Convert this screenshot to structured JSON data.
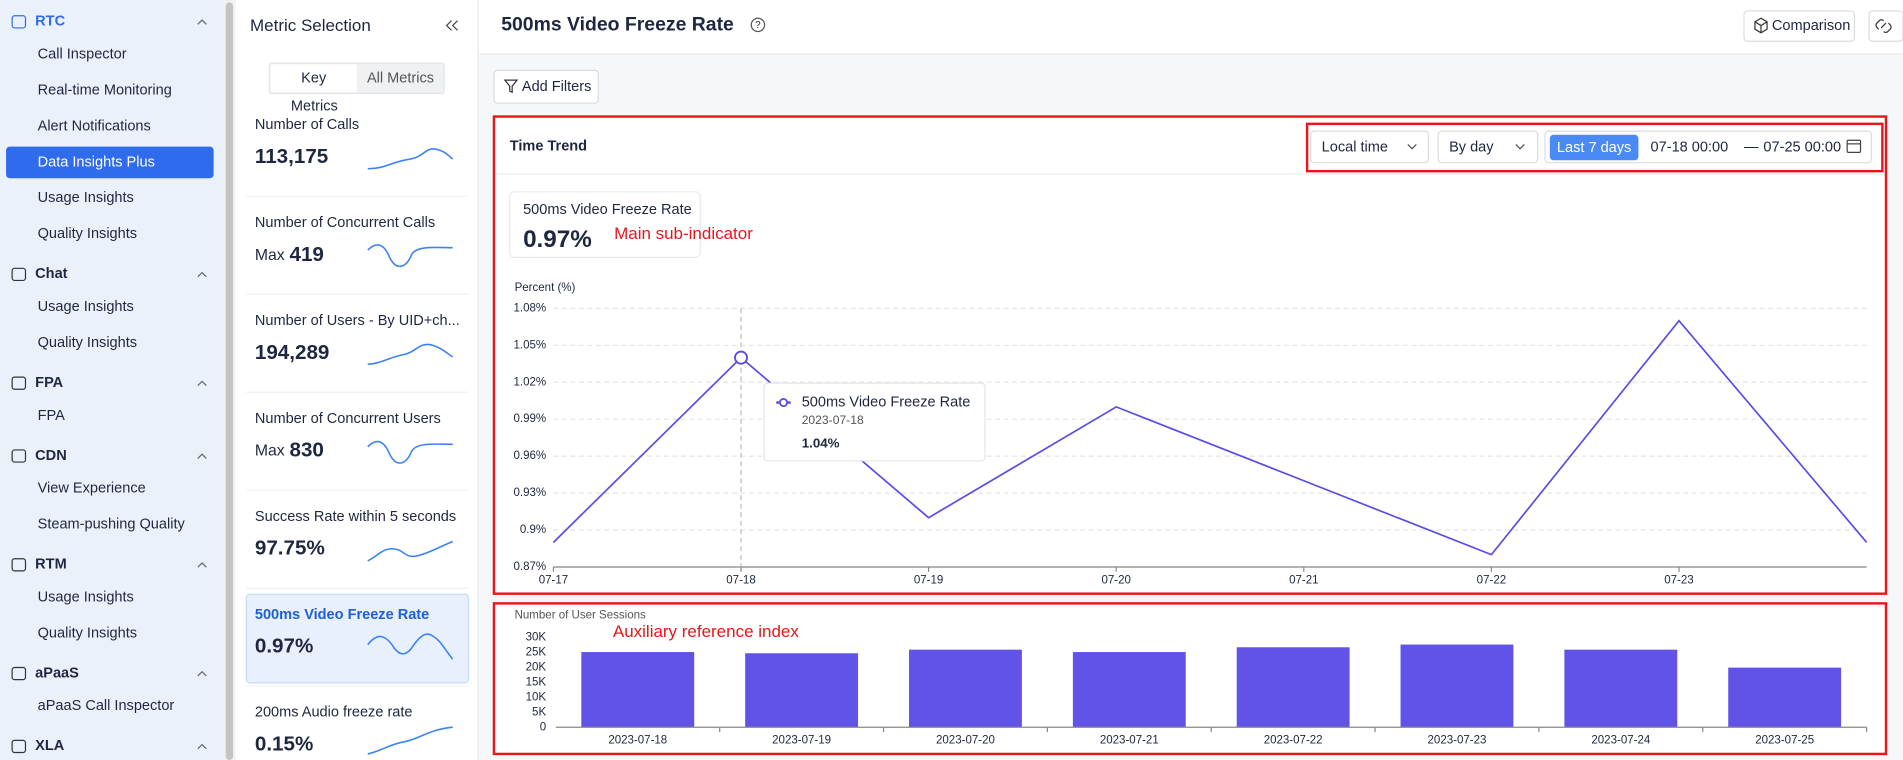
{
  "sidebar": {
    "groups": [
      {
        "title": "RTC",
        "items": [
          "Call Inspector",
          "Real-time Monitoring",
          "Alert Notifications",
          "Data Insights Plus",
          "Usage Insights",
          "Quality Insights"
        ]
      },
      {
        "title": "Chat",
        "items": [
          "Usage Insights",
          "Quality Insights"
        ]
      },
      {
        "title": "FPA",
        "items": [
          "FPA"
        ]
      },
      {
        "title": "CDN",
        "items": [
          "View Experience",
          "Steam-pushing Quality"
        ]
      },
      {
        "title": "RTM",
        "items": [
          "Usage Insights",
          "Quality Insights"
        ]
      },
      {
        "title": "aPaaS",
        "items": [
          "aPaaS Call Inspector"
        ]
      },
      {
        "title": "XLA",
        "items": []
      }
    ]
  },
  "metric_panel": {
    "title": "Metric Selection",
    "tabs": [
      "Key",
      "All Metrics"
    ],
    "section": "Metrics",
    "metrics": [
      {
        "name": "Number of Calls",
        "value": "113,175"
      },
      {
        "name": "Number of Concurrent Calls",
        "prefix": "Max",
        "value": "419"
      },
      {
        "name": "Number of Users - By UID+ch...",
        "value": "194,289"
      },
      {
        "name": "Number of Concurrent Users",
        "prefix": "Max",
        "value": "830"
      },
      {
        "name": "Success Rate within 5 seconds",
        "value": "97.75%"
      },
      {
        "name": "500ms Video Freeze Rate",
        "value": "0.97%"
      },
      {
        "name": "200ms Audio freeze rate",
        "value": "0.15%"
      }
    ]
  },
  "header": {
    "title": "500ms Video Freeze Rate",
    "comparison": "Comparison",
    "add_filters": "Add Filters"
  },
  "time_trend": {
    "title": "Time Trend",
    "timezone": "Local time",
    "granularity": "By day",
    "range": "Last 7 days",
    "start": "07-18 00:00",
    "separator": "—",
    "end": "07-25 00:00",
    "sub_indicator": {
      "name": "500ms Video Freeze Rate",
      "value": "0.97%"
    }
  },
  "chart_data": [
    {
      "type": "line",
      "y_title": "Percent (%)",
      "annotation": "Main sub-indicator",
      "categories": [
        "07-17",
        "07-18",
        "07-19",
        "07-20",
        "07-21",
        "07-22",
        "07-23",
        null
      ],
      "series": [
        {
          "name": "500ms Video Freeze Rate",
          "color": "#5a4de6",
          "values": [
            0.89,
            1.04,
            0.91,
            1.0,
            0.94,
            0.88,
            1.07,
            0.89
          ],
          "value_labels": [
            null,
            "1.04%",
            null,
            null,
            null,
            null,
            null,
            null
          ]
        }
      ],
      "tooltip": {
        "date": "2023-07-18"
      },
      "ylim": [
        0.87,
        1.08
      ],
      "yticks": [
        {
          "value": 0.87,
          "label": "0.87%"
        },
        {
          "value": 0.9,
          "label": "0.9%"
        },
        {
          "value": 0.93,
          "label": "0.93%"
        },
        {
          "value": 0.96,
          "label": "0.96%"
        },
        {
          "value": 0.99,
          "label": "0.99%"
        },
        {
          "value": 1.02,
          "label": "1.02%"
        },
        {
          "value": 1.05,
          "label": "1.05%"
        },
        {
          "value": 1.08,
          "label": "1.08%"
        }
      ],
      "grid": true
    },
    {
      "type": "bar",
      "y_title": "Number of User Sessions",
      "annotation": "Auxiliary reference index",
      "categories": [
        "2023-07-18",
        "2023-07-19",
        "2023-07-20",
        "2023-07-21",
        "2023-07-22",
        "2023-07-23",
        "2023-07-24",
        "2023-07-25"
      ],
      "values": [
        25100,
        24700,
        25900,
        25100,
        26700,
        27600,
        25900,
        19900
      ],
      "color": "#6152e8",
      "ylim": [
        0,
        30000
      ],
      "yticks": [
        0,
        {
          "value": 5000,
          "label": "5K"
        },
        {
          "value": 10000,
          "label": "10K"
        },
        {
          "value": 15000,
          "label": "15K"
        },
        {
          "value": 20000,
          "label": "20K"
        },
        {
          "value": 25000,
          "label": "25K"
        },
        {
          "value": 30000,
          "label": "30K"
        }
      ],
      "grid": false
    }
  ]
}
